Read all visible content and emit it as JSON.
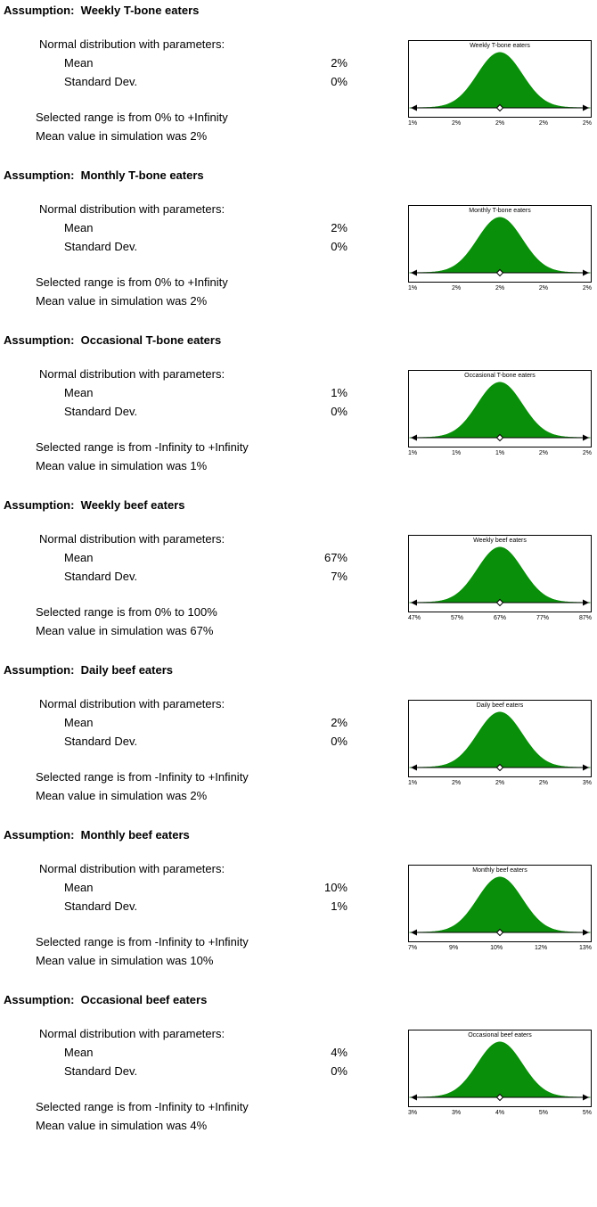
{
  "report": {
    "kind": "Assumption report"
  },
  "sections": [
    {
      "title": "Assumption:  Weekly T-bone eaters",
      "dist_label": "Normal distribution with parameters:",
      "mean_label": "Mean",
      "mean_value": "2%",
      "sd_label": "Standard Dev.",
      "sd_value": "0%",
      "range_text": "Selected range is from 0% to +Infinity",
      "sim_text": "Mean value in simulation was 2%",
      "chart": {
        "title": "Weekly T-bone eaters",
        "ticks": [
          "1%",
          "2%",
          "2%",
          "2%",
          "2%"
        ]
      }
    },
    {
      "title": "Assumption:  Monthly T-bone eaters",
      "dist_label": "Normal distribution with parameters:",
      "mean_label": "Mean",
      "mean_value": "2%",
      "sd_label": "Standard Dev.",
      "sd_value": "0%",
      "range_text": "Selected range is from 0% to +Infinity",
      "sim_text": "Mean value in simulation was 2%",
      "chart": {
        "title": "Monthly T-bone eaters",
        "ticks": [
          "1%",
          "2%",
          "2%",
          "2%",
          "2%"
        ]
      }
    },
    {
      "title": "Assumption:  Occasional T-bone eaters",
      "dist_label": "Normal distribution with parameters:",
      "mean_label": "Mean",
      "mean_value": "1%",
      "sd_label": "Standard Dev.",
      "sd_value": "0%",
      "range_text": "Selected range is from -Infinity to +Infinity",
      "sim_text": "Mean value in simulation was 1%",
      "chart": {
        "title": "Occasional T-bone eaters",
        "ticks": [
          "1%",
          "1%",
          "1%",
          "2%",
          "2%"
        ]
      }
    },
    {
      "title": "Assumption:  Weekly beef eaters",
      "dist_label": "Normal distribution with parameters:",
      "mean_label": "Mean",
      "mean_value": "67%",
      "sd_label": "Standard Dev.",
      "sd_value": "7%",
      "range_text": "Selected range is from 0% to 100%",
      "sim_text": "Mean value in simulation was 67%",
      "chart": {
        "title": "Weekly beef eaters",
        "ticks": [
          "47%",
          "57%",
          "67%",
          "77%",
          "87%"
        ]
      }
    },
    {
      "title": "Assumption:  Daily beef eaters",
      "dist_label": "Normal distribution with parameters:",
      "mean_label": "Mean",
      "mean_value": "2%",
      "sd_label": "Standard Dev.",
      "sd_value": "0%",
      "range_text": "Selected range is from -Infinity to +Infinity",
      "sim_text": "Mean value in simulation was 2%",
      "chart": {
        "title": "Daily beef eaters",
        "ticks": [
          "1%",
          "2%",
          "2%",
          "2%",
          "3%"
        ]
      }
    },
    {
      "title": "Assumption:  Monthly beef eaters",
      "dist_label": "Normal distribution with parameters:",
      "mean_label": "Mean",
      "mean_value": "10%",
      "sd_label": "Standard Dev.",
      "sd_value": "1%",
      "range_text": "Selected range is from -Infinity to +Infinity",
      "sim_text": "Mean value in simulation was 10%",
      "chart": {
        "title": "Monthly beef eaters",
        "ticks": [
          "7%",
          "9%",
          "10%",
          "12%",
          "13%"
        ]
      }
    },
    {
      "title": "Assumption:  Occasional beef eaters",
      "dist_label": "Normal distribution with parameters:",
      "mean_label": "Mean",
      "mean_value": "4%",
      "sd_label": "Standard Dev.",
      "sd_value": "0%",
      "range_text": "Selected range is from -Infinity to +Infinity",
      "sim_text": "Mean value in simulation was 4%",
      "chart": {
        "title": "Occasional beef eaters",
        "ticks": [
          "3%",
          "3%",
          "4%",
          "5%",
          "5%"
        ]
      }
    }
  ],
  "chart_data": [
    {
      "type": "area",
      "distribution": "normal",
      "title": "Weekly T-bone eaters",
      "mean": "2%",
      "std_dev": "0%",
      "x_tick_labels": [
        "1%",
        "2%",
        "2%",
        "2%",
        "2%"
      ],
      "selected_range": "0% to +Infinity",
      "fill_color": "#0a8f0a"
    },
    {
      "type": "area",
      "distribution": "normal",
      "title": "Monthly T-bone eaters",
      "mean": "2%",
      "std_dev": "0%",
      "x_tick_labels": [
        "1%",
        "2%",
        "2%",
        "2%",
        "2%"
      ],
      "selected_range": "0% to +Infinity",
      "fill_color": "#0a8f0a"
    },
    {
      "type": "area",
      "distribution": "normal",
      "title": "Occasional T-bone eaters",
      "mean": "1%",
      "std_dev": "0%",
      "x_tick_labels": [
        "1%",
        "1%",
        "1%",
        "2%",
        "2%"
      ],
      "selected_range": "-Infinity to +Infinity",
      "fill_color": "#0a8f0a"
    },
    {
      "type": "area",
      "distribution": "normal",
      "title": "Weekly beef eaters",
      "mean": "67%",
      "std_dev": "7%",
      "x_tick_labels": [
        "47%",
        "57%",
        "67%",
        "77%",
        "87%"
      ],
      "selected_range": "0% to 100%",
      "fill_color": "#0a8f0a"
    },
    {
      "type": "area",
      "distribution": "normal",
      "title": "Daily beef eaters",
      "mean": "2%",
      "std_dev": "0%",
      "x_tick_labels": [
        "1%",
        "2%",
        "2%",
        "2%",
        "3%"
      ],
      "selected_range": "-Infinity to +Infinity",
      "fill_color": "#0a8f0a"
    },
    {
      "type": "area",
      "distribution": "normal",
      "title": "Monthly beef eaters",
      "mean": "10%",
      "std_dev": "1%",
      "x_tick_labels": [
        "7%",
        "9%",
        "10%",
        "12%",
        "13%"
      ],
      "selected_range": "-Infinity to +Infinity",
      "fill_color": "#0a8f0a"
    },
    {
      "type": "area",
      "distribution": "normal",
      "title": "Occasional beef eaters",
      "mean": "4%",
      "std_dev": "0%",
      "x_tick_labels": [
        "3%",
        "3%",
        "4%",
        "5%",
        "5%"
      ],
      "selected_range": "-Infinity to +Infinity",
      "fill_color": "#0a8f0a"
    }
  ]
}
